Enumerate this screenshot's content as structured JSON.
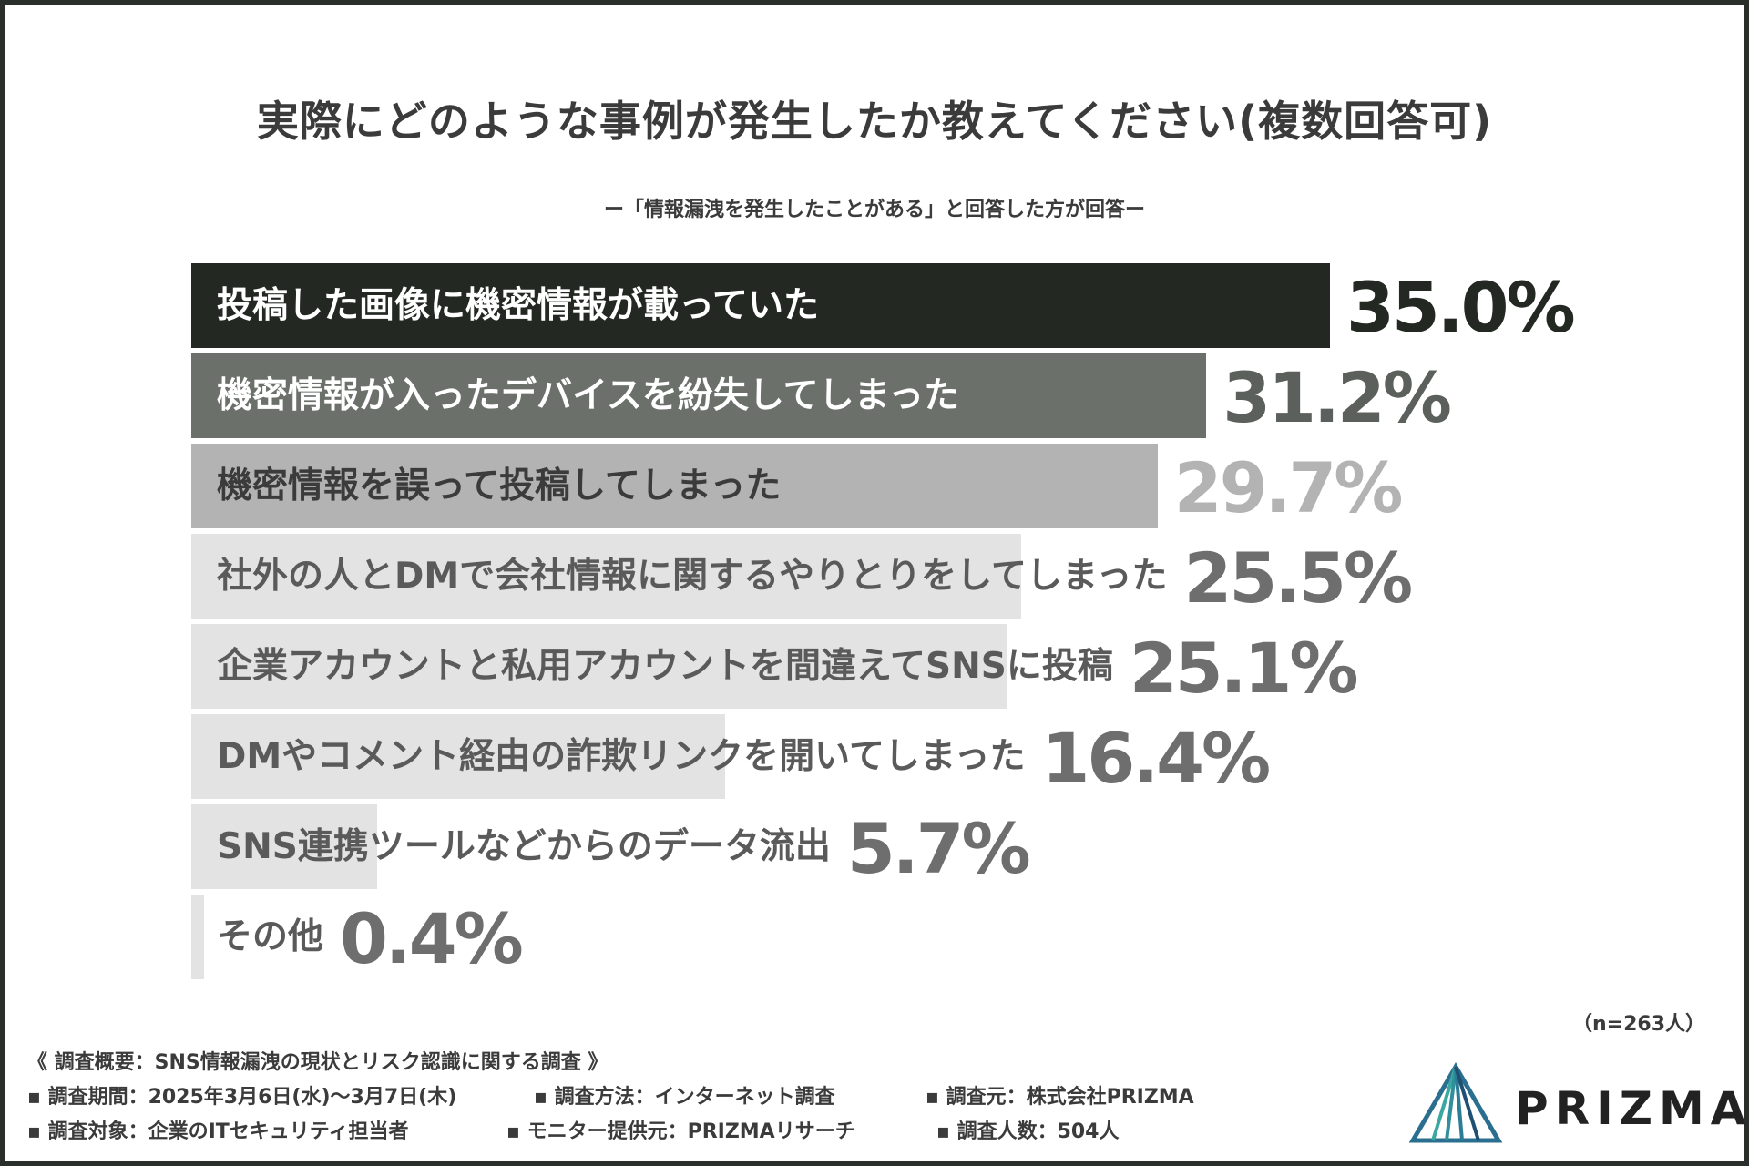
{
  "chart_data": {
    "type": "bar",
    "orientation": "horizontal",
    "title": "実際にどのような事例が発生したか教えてください(複数回答可)",
    "subtitle": "ー「情報漏洩を発生したことがある」と回答した方が回答ー",
    "categories": [
      "投稿した画像に機密情報が載っていた",
      "機密情報が入ったデバイスを紛失してしまった",
      "機密情報を誤って投稿してしまった",
      "社外の人とDMで会社情報に関するやりとりをしてしまった",
      "企業アカウントと私用アカウントを間違えてSNSに投稿",
      "DMやコメント経由の詐欺リンクを開いてしまった",
      "SNS連携ツールなどからのデータ流出",
      "その他"
    ],
    "values": [
      35.0,
      31.2,
      29.7,
      25.5,
      25.1,
      16.4,
      5.7,
      0.4
    ],
    "value_labels": [
      "35.0%",
      "31.2%",
      "29.7%",
      "25.5%",
      "25.1%",
      "16.4%",
      "5.7%",
      "0.4%"
    ],
    "bar_colors": [
      "#232823",
      "#6b706b",
      "#b3b3b3",
      "#e3e3e3",
      "#e3e3e3",
      "#e3e3e3",
      "#e3e3e3",
      "#e3e3e3"
    ],
    "label_colors": [
      "#ffffff",
      "#ffffff",
      "#3b3b3b",
      "#5a5a5a",
      "#5a5a5a",
      "#5a5a5a",
      "#5a5a5a",
      "#5a5a5a"
    ],
    "value_colors": [
      "#232823",
      "#5c605c",
      "#b3b3b3",
      "#6e6e6e",
      "#6e6e6e",
      "#6e6e6e",
      "#6e6e6e",
      "#6e6e6e"
    ],
    "sample_size": "（n=263人）"
  },
  "survey": {
    "heading": "《 調査概要：SNS情報漏洩の現状とリスク認識に関する調査 》",
    "period": "▪ 調査期間：2025年3月6日(水)〜3月7日(木)",
    "method": "▪ 調査方法：インターネット調査",
    "source": "▪ 調査元：株式会社PRIZMA",
    "target": "▪ 調査対象：企業のITセキュリティ担当者",
    "provider": "▪ モニター提供元：PRIZMAリサーチ",
    "count": "▪ 調査人数：504人"
  },
  "logo": {
    "text": "PRIZMA",
    "colors": [
      "#2a6f8f",
      "#3aa7a0",
      "#1f4f73"
    ]
  }
}
